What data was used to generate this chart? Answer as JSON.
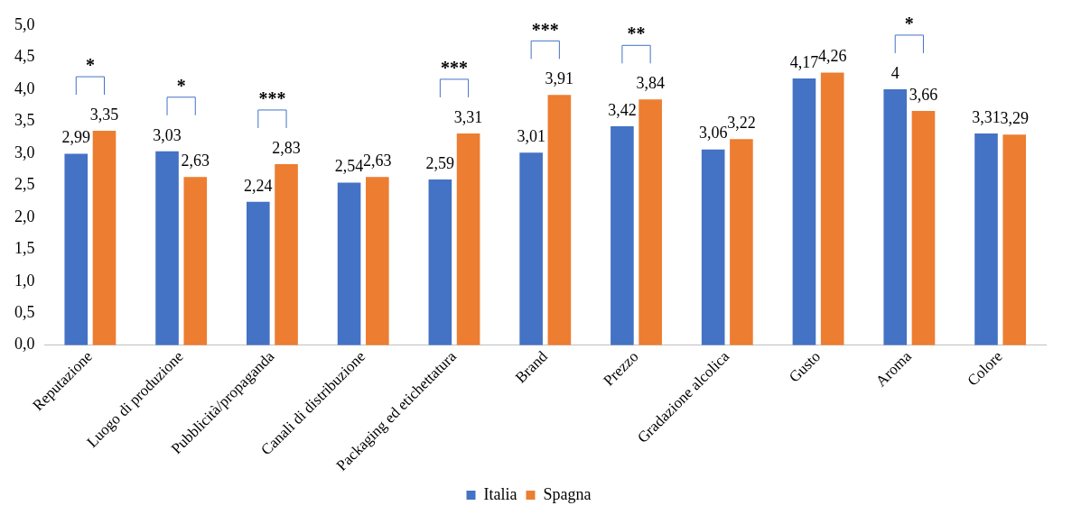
{
  "chart_data": {
    "type": "bar",
    "categories": [
      "Reputazione",
      "Luogo di produzione",
      "Pubblicità/propaganda",
      "Canali di distribuzione",
      "Packaging ed etichettatura",
      "Brand",
      "Prezzo",
      "Gradazione alcolica",
      "Gusto",
      "Aroma",
      "Colore"
    ],
    "series": [
      {
        "name": "Italia",
        "color": "#4472c4",
        "values": [
          2.99,
          3.03,
          2.24,
          2.54,
          2.59,
          3.01,
          3.42,
          3.06,
          4.17,
          4,
          3.31
        ],
        "value_labels": [
          "2,99",
          "3,03",
          "2,24",
          "2,54",
          "2,59",
          "3,01",
          "3,42",
          "3,06",
          "4,17",
          "4",
          "3,31"
        ]
      },
      {
        "name": "Spagna",
        "color": "#ed7d31",
        "values": [
          3.35,
          2.63,
          2.83,
          2.63,
          3.31,
          3.91,
          3.84,
          3.22,
          4.26,
          3.66,
          3.29
        ],
        "value_labels": [
          "3,35",
          "2,63",
          "2,83",
          "2,63",
          "3,31",
          "3,91",
          "3,84",
          "3,22",
          "4,26",
          "3,66",
          "3,29"
        ]
      }
    ],
    "ylim": [
      0,
      5
    ],
    "yticks": [
      {
        "value": 0,
        "label": "0,0"
      },
      {
        "value": 0.5,
        "label": "0,5"
      },
      {
        "value": 1,
        "label": "1,0"
      },
      {
        "value": 1.5,
        "label": "1,5"
      },
      {
        "value": 2,
        "label": "2,0"
      },
      {
        "value": 2.5,
        "label": "2,5"
      },
      {
        "value": 3,
        "label": "3,0"
      },
      {
        "value": 3.5,
        "label": "3,5"
      },
      {
        "value": 4,
        "label": "4,0"
      },
      {
        "value": 4.5,
        "label": "4,5"
      },
      {
        "value": 5,
        "label": "5,0"
      }
    ],
    "annotations": [
      "*",
      "*",
      "***",
      "***",
      "***",
      "**",
      "*"
    ],
    "grid": false,
    "legend": "bottom"
  }
}
